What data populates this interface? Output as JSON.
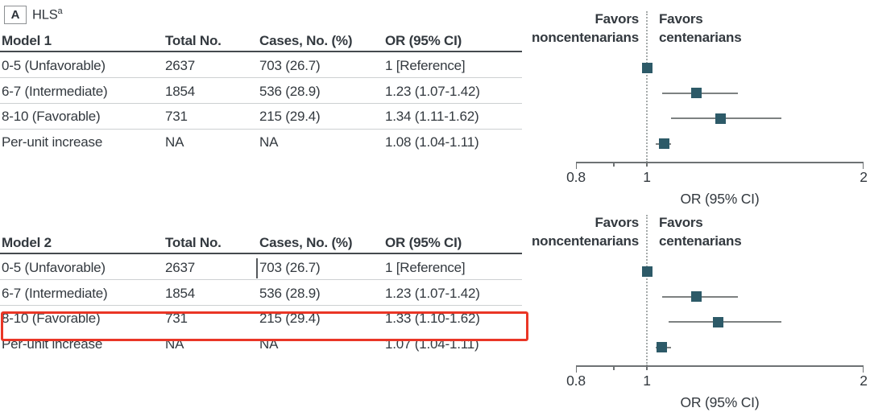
{
  "panel": {
    "label": "A",
    "title": "HLS",
    "superscript": "a"
  },
  "colors": {
    "marker_teal": "#2d5a68",
    "ci_gray": "#7d8181",
    "axis_gray": "#6e7274",
    "text_dark": "#33393f",
    "highlight_red": "#ea3626",
    "row_separator": "#cdd0d2"
  },
  "tables": [
    {
      "headers": [
        "Model 1",
        "Total No.",
        "Cases, No. (%)",
        "OR (95% CI)"
      ],
      "rows": [
        [
          "0-5 (Unfavorable)",
          "2637",
          "703 (26.7)",
          "1 [Reference]"
        ],
        [
          "6-7 (Intermediate)",
          "1854",
          "536 (28.9)",
          "1.23 (1.07-1.42)"
        ],
        [
          "8-10 (Favorable)",
          "731",
          "215 (29.4)",
          "1.34 (1.11-1.62)"
        ],
        [
          "Per-unit increase",
          "NA",
          "NA",
          "1.08 (1.04-1.11)"
        ]
      ]
    },
    {
      "headers": [
        "Model 2",
        "Total No.",
        "Cases, No. (%)",
        "OR (95% CI)"
      ],
      "rows": [
        [
          "0-5 (Unfavorable)",
          "2637",
          "703 (26.7)",
          "1 [Reference]"
        ],
        [
          "6-7 (Intermediate)",
          "1854",
          "536 (28.9)",
          "1.23 (1.07-1.42)"
        ],
        [
          "8-10 (Favorable)",
          "731",
          "215 (29.4)",
          "1.33 (1.10-1.62)"
        ],
        [
          "Per-unit increase",
          "NA",
          "NA",
          "1.07 (1.04-1.11)"
        ]
      ]
    }
  ],
  "forest_labels": {
    "favors_left_line1": "Favors",
    "favors_left_line2": "noncentenarians",
    "favors_right_line1": "Favors",
    "favors_right_line2": "centenarians",
    "tick_labels": [
      "0.8",
      "1",
      "2"
    ],
    "axis_title": "OR (95% CI)"
  },
  "chart_data": [
    {
      "type": "scatter",
      "subtype": "forest-plot",
      "title": "Model 1 HLS odds ratios for centenarian status",
      "xlabel": "OR (95% CI)",
      "x_axis": {
        "min": 0.8,
        "max": 2,
        "ticks": [
          0.8,
          0.9,
          1,
          2
        ],
        "labeled_ticks": [
          0.8,
          1,
          2
        ],
        "reference_line": 1
      },
      "legend_left": "Favors noncentenarians",
      "legend_right": "Favors centenarians",
      "rows": [
        {
          "label": "0-5 (Unfavorable)",
          "or": 1.0,
          "lo": null,
          "hi": null,
          "reference": true
        },
        {
          "label": "6-7 (Intermediate)",
          "or": 1.23,
          "lo": 1.07,
          "hi": 1.42,
          "reference": false
        },
        {
          "label": "8-10 (Favorable)",
          "or": 1.34,
          "lo": 1.11,
          "hi": 1.62,
          "reference": false
        },
        {
          "label": "Per-unit increase",
          "or": 1.08,
          "lo": 1.04,
          "hi": 1.11,
          "reference": false
        }
      ]
    },
    {
      "type": "scatter",
      "subtype": "forest-plot",
      "title": "Model 2 HLS odds ratios for centenarian status",
      "xlabel": "OR (95% CI)",
      "x_axis": {
        "min": 0.8,
        "max": 2,
        "ticks": [
          0.8,
          0.9,
          1,
          2
        ],
        "labeled_ticks": [
          0.8,
          1,
          2
        ],
        "reference_line": 1
      },
      "legend_left": "Favors noncentenarians",
      "legend_right": "Favors centenarians",
      "rows": [
        {
          "label": "0-5 (Unfavorable)",
          "or": 1.0,
          "lo": null,
          "hi": null,
          "reference": true
        },
        {
          "label": "6-7 (Intermediate)",
          "or": 1.23,
          "lo": 1.07,
          "hi": 1.42,
          "reference": false
        },
        {
          "label": "8-10 (Favorable)",
          "or": 1.33,
          "lo": 1.1,
          "hi": 1.62,
          "reference": false
        },
        {
          "label": "Per-unit increase",
          "or": 1.07,
          "lo": 1.04,
          "hi": 1.11,
          "reference": false
        }
      ]
    }
  ],
  "annotations": {
    "highlighted_row": "Model 2 / 8-10 (Favorable)"
  }
}
